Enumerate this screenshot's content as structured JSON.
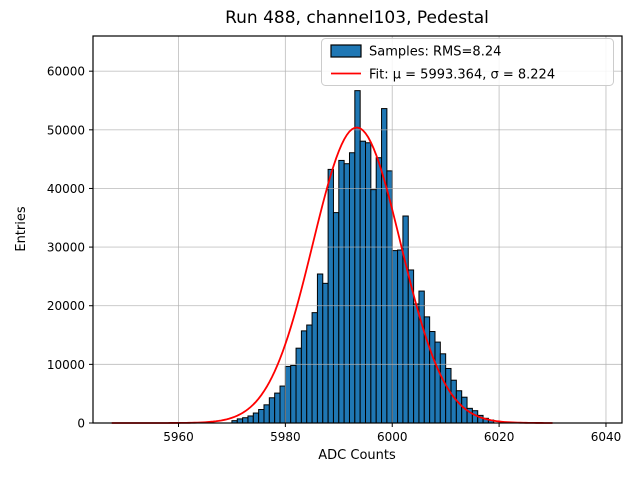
{
  "figure": {
    "title": "Run 488, channel103, Pedestal",
    "xlabel": "ADC Counts",
    "ylabel": "Entries"
  },
  "legend": {
    "position": "upper right",
    "samples_label": "Samples: RMS=8.24",
    "fit_label": "Fit: μ = 5993.364, σ = 8.224"
  },
  "colors": {
    "bar_fill": "#1f77b4",
    "bar_edge": "#000000",
    "fit_line": "#ff0000",
    "grid": "#b0b0b0",
    "spine": "#000000",
    "legend_border": "#cccccc",
    "background": "#ffffff"
  },
  "chart_data": {
    "type": "bar",
    "subtype": "histogram",
    "title": "Run 488, channel103, Pedestal",
    "xlabel": "ADC Counts",
    "ylabel": "Entries",
    "grid": true,
    "legend_position": "upper right",
    "xlim": [
      5944,
      6043
    ],
    "ylim": [
      0,
      66000
    ],
    "xticks": [
      5960,
      5980,
      6000,
      6020,
      6040
    ],
    "yticks": [
      0,
      10000,
      20000,
      30000,
      40000,
      50000,
      60000
    ],
    "bin_start": 5970,
    "bin_width": 1,
    "bin_counts": [
      400,
      700,
      900,
      1200,
      1700,
      2300,
      3100,
      4300,
      5100,
      6300,
      9650,
      9820,
      12760,
      15710,
      16710,
      18820,
      25410,
      23820,
      43250,
      35880,
      44780,
      44220,
      46090,
      56680,
      48060,
      47790,
      39800,
      45240,
      53620,
      43000,
      29400,
      29500,
      35300,
      26100,
      20300,
      22500,
      18100,
      15600,
      13800,
      11800,
      9300,
      7300,
      5500,
      4400,
      2500,
      2100,
      1300,
      800,
      500
    ],
    "series": [
      {
        "name": "Samples: RMS=8.24",
        "type": "histogram",
        "rms": 8.24
      },
      {
        "name": "Fit: μ = 5993.364, σ = 8.224",
        "type": "gaussian-fit",
        "amplitude": 50400,
        "mu": 5993.364,
        "sigma": 8.224,
        "x_range": [
          5947.5,
          6030
        ]
      }
    ]
  }
}
